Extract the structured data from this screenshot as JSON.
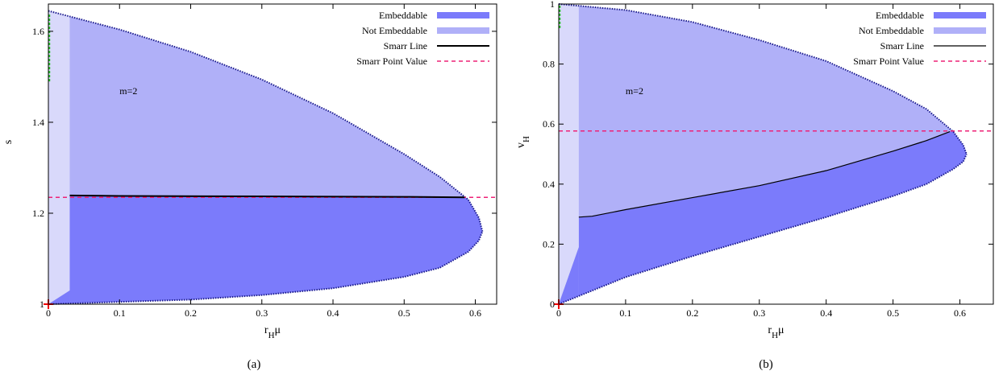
{
  "colors": {
    "embeddable": "#7b7bfb",
    "not_embeddable": "#b0b0f8",
    "band": "#d9d9fb",
    "boundary": "#1a1a8c",
    "smarr_line": "#000000",
    "smarr_point": "#ee2277",
    "green": "#22bb22",
    "red": "#ee0000"
  },
  "chart_data": [
    {
      "type": "area",
      "caption": "(a)",
      "xlabel": "r_Hμ",
      "ylabel": "s",
      "xlim": [
        0,
        0.63
      ],
      "ylim": [
        1.0,
        1.66
      ],
      "xticks": [
        "0",
        "0.1",
        "0.2",
        "0.3",
        "0.4",
        "0.5",
        "0.6"
      ],
      "yticks": [
        "1",
        "1.2",
        "1.4",
        "1.6"
      ],
      "annotation": "m=2",
      "legend_position": "top-right",
      "legend": [
        "Embeddable",
        "Not Embeddable",
        "Smarr Line",
        "Smarr Point Value"
      ],
      "boundary_upper": [
        [
          0,
          1.645
        ],
        [
          0.1,
          1.604
        ],
        [
          0.2,
          1.555
        ],
        [
          0.3,
          1.494
        ],
        [
          0.4,
          1.42
        ],
        [
          0.5,
          1.33
        ],
        [
          0.55,
          1.28
        ],
        [
          0.59,
          1.23
        ],
        [
          0.605,
          1.19
        ],
        [
          0.61,
          1.16
        ]
      ],
      "boundary_lower": [
        [
          0,
          1.0
        ],
        [
          0.1,
          1.005
        ],
        [
          0.2,
          1.01
        ],
        [
          0.3,
          1.02
        ],
        [
          0.4,
          1.035
        ],
        [
          0.5,
          1.06
        ],
        [
          0.55,
          1.08
        ],
        [
          0.59,
          1.115
        ],
        [
          0.605,
          1.14
        ],
        [
          0.61,
          1.16
        ]
      ],
      "band_x": 0.03,
      "band_bottom_y": 1.03,
      "smarr_line": [
        [
          0.03,
          1.239
        ],
        [
          0.1,
          1.238
        ],
        [
          0.3,
          1.237
        ],
        [
          0.5,
          1.236
        ],
        [
          0.585,
          1.235
        ]
      ],
      "smarr_point_value": 1.235,
      "green_segment": [
        1.49,
        1.64
      ]
    },
    {
      "type": "area",
      "caption": "(b)",
      "xlabel": "r_Hμ",
      "ylabel": "v_H",
      "xlim": [
        0,
        0.65
      ],
      "ylim": [
        0,
        1.0
      ],
      "xticks": [
        "0",
        "0.1",
        "0.2",
        "0.3",
        "0.4",
        "0.5",
        "0.6"
      ],
      "yticks": [
        "0",
        "0.2",
        "0.4",
        "0.6",
        "0.8",
        "1"
      ],
      "annotation": "m=2",
      "legend_position": "top-right",
      "legend": [
        "Embeddable",
        "Not Embeddable",
        "Smarr Line",
        "Smarr Point Value"
      ],
      "boundary_upper": [
        [
          0,
          1.0
        ],
        [
          0.1,
          0.98
        ],
        [
          0.2,
          0.94
        ],
        [
          0.3,
          0.88
        ],
        [
          0.4,
          0.81
        ],
        [
          0.5,
          0.71
        ],
        [
          0.55,
          0.65
        ],
        [
          0.59,
          0.575
        ],
        [
          0.605,
          0.53
        ],
        [
          0.61,
          0.5
        ]
      ],
      "boundary_lower": [
        [
          0,
          0.0
        ],
        [
          0.1,
          0.09
        ],
        [
          0.2,
          0.16
        ],
        [
          0.3,
          0.225
        ],
        [
          0.4,
          0.29
        ],
        [
          0.5,
          0.36
        ],
        [
          0.55,
          0.4
        ],
        [
          0.59,
          0.45
        ],
        [
          0.605,
          0.475
        ],
        [
          0.61,
          0.5
        ]
      ],
      "band_x": 0.03,
      "band_bottom_y": 0.19,
      "smarr_line": [
        [
          0.03,
          0.29
        ],
        [
          0.05,
          0.293
        ],
        [
          0.1,
          0.315
        ],
        [
          0.2,
          0.355
        ],
        [
          0.3,
          0.395
        ],
        [
          0.4,
          0.445
        ],
        [
          0.5,
          0.51
        ],
        [
          0.55,
          0.545
        ],
        [
          0.585,
          0.575
        ]
      ],
      "smarr_point_value": 0.577,
      "green_segment": [
        0.92,
        1.0
      ]
    }
  ]
}
